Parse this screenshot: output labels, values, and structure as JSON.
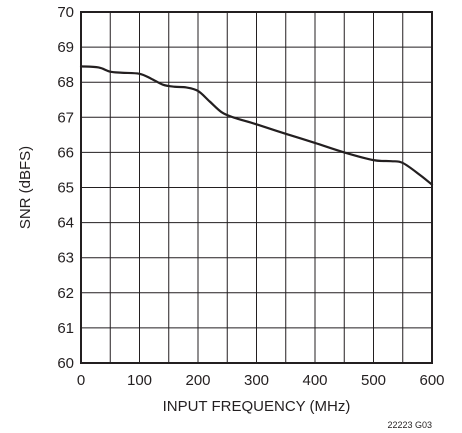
{
  "chart_data": {
    "type": "line",
    "title": "",
    "xlabel": "INPUT FREQUENCY (MHz)",
    "ylabel": "SNR (dBFS)",
    "xlim": [
      0,
      600
    ],
    "ylim": [
      60,
      70
    ],
    "x_ticks": [
      0,
      100,
      200,
      300,
      400,
      500,
      600
    ],
    "x_tick_labels": [
      "0",
      "100",
      "200",
      "300",
      "400",
      "500",
      "600"
    ],
    "y_ticks": [
      60,
      61,
      62,
      63,
      64,
      65,
      66,
      67,
      68,
      69,
      70
    ],
    "y_tick_labels": [
      "60",
      "61",
      "62",
      "63",
      "64",
      "65",
      "66",
      "67",
      "68",
      "69",
      "70"
    ],
    "grid": true,
    "grid_x_step": 50,
    "grid_y_step": 1,
    "series": [
      {
        "x": [
          0,
          30,
          50,
          70,
          100,
          120,
          140,
          160,
          180,
          200,
          220,
          240,
          260,
          300,
          350,
          400,
          450,
          500,
          530,
          550,
          580,
          600
        ],
        "y": [
          68.45,
          68.42,
          68.3,
          68.27,
          68.24,
          68.1,
          67.93,
          67.87,
          67.85,
          67.75,
          67.45,
          67.15,
          67.0,
          66.8,
          66.53,
          66.27,
          66.0,
          65.78,
          65.75,
          65.7,
          65.35,
          65.08
        ]
      }
    ],
    "footnote": "22223 G03"
  }
}
